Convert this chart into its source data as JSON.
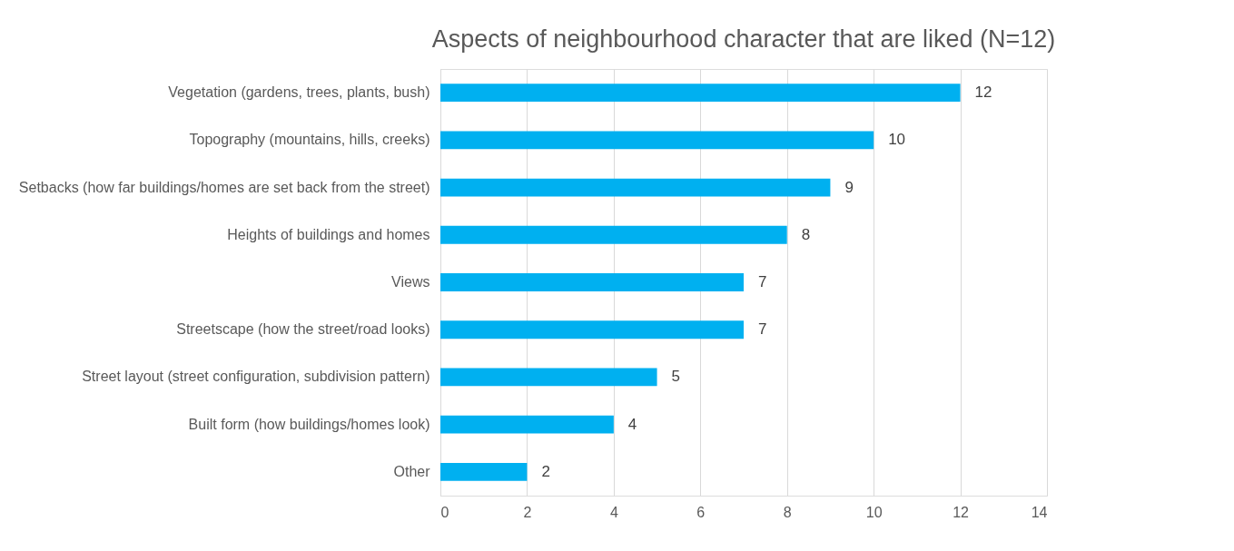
{
  "chart_data": {
    "type": "bar",
    "orientation": "horizontal",
    "title": "Aspects of neighbourhood character that are liked (N=12)",
    "categories": [
      "Vegetation (gardens, trees, plants, bush)",
      "Topography (mountains, hills, creeks)",
      "Setbacks (how far buildings/homes are set back from the street)",
      "Heights of buildings and homes",
      "Views",
      "Streetscape (how the street/road looks)",
      "Street layout (street configuration, subdivision pattern)",
      "Built form (how buildings/homes look)",
      "Other"
    ],
    "values": [
      12,
      10,
      9,
      8,
      7,
      7,
      5,
      4,
      2
    ],
    "color": "#00b0f0",
    "xlim": [
      0,
      14
    ],
    "xticks": [
      0,
      2,
      4,
      6,
      8,
      10,
      12,
      14
    ],
    "grid": "x",
    "data_labels": true
  }
}
